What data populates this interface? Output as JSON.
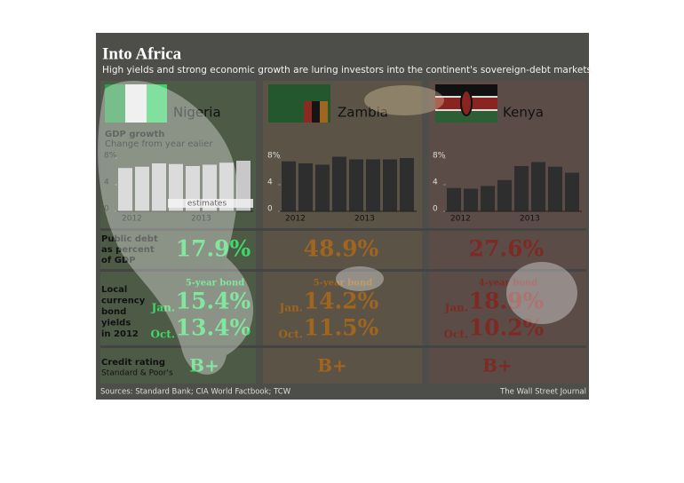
{
  "title": "Into Africa",
  "subtitle": "High yields and strong economic growth are luring investors into the continent's sovereign-debt markets.",
  "gdp": {
    "label": "GDP growth",
    "sublabel": "Change from year ealier",
    "ylim": [
      0,
      8
    ],
    "yticks": [
      0,
      4,
      {
        "value": 8,
        "label": "8%"
      }
    ],
    "xlabels": [
      "2012",
      "2013"
    ],
    "estimates": "estimates"
  },
  "row_labels": {
    "debt": [
      "Public debt",
      "as percent",
      "of GDP"
    ],
    "bonds": [
      "Local",
      "currency",
      "bond",
      "yields",
      "in 2012"
    ],
    "rating": "Credit rating",
    "rating_source": "Standard & Poor's"
  },
  "countries": [
    {
      "name": "Nigeria",
      "gdp": [
        6.5,
        6.7,
        7.2,
        7.1,
        6.8,
        7.0,
        7.3,
        7.6
      ],
      "debt": "17.9%",
      "bond_label": "5-year bond",
      "jan_label": "Jan.",
      "jan": "15.4%",
      "oct_label": "Oct.",
      "oct": "13.4%",
      "rating": "B+"
    },
    {
      "name": "Zambia",
      "gdp": [
        7.5,
        7.2,
        7.0,
        8.2,
        7.8,
        7.8,
        7.8,
        8.0
      ],
      "debt": "48.9%",
      "bond_label": "5-year bond",
      "jan_label": "Jan.",
      "jan": "14.2%",
      "oct_label": "Oct.",
      "oct": "11.5%",
      "rating": "B+"
    },
    {
      "name": "Kenya",
      "gdp": [
        3.5,
        3.4,
        3.8,
        4.7,
        6.8,
        7.4,
        6.7,
        5.8
      ],
      "debt": "27.6%",
      "bond_label": "4-year bond",
      "jan_label": "Jan.",
      "jan": "18.9%",
      "oct_label": "Oct.",
      "oct": "10.2%",
      "rating": "B+"
    }
  ],
  "source": "Sources: Standard Bank; CIA World Factbook; TCW",
  "credit": "The Wall Street Journal"
}
